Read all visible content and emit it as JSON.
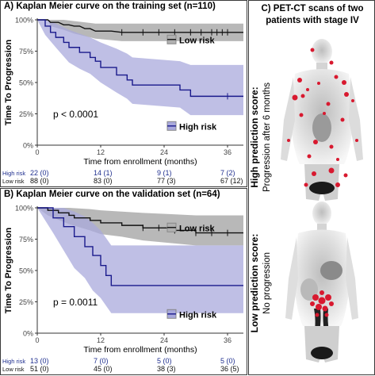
{
  "panel_a": {
    "title": "A) Kaplan Meier curve on the training set (n=110)"
  },
  "panel_b": {
    "title": "B) Kaplan Meier curve on the validation set (n=64)"
  },
  "panel_c": {
    "title_line1": "C) PET-CT scans of two",
    "title_line2": "patients with stage IV",
    "top_label_bold": "High prediction score:",
    "top_label_sub": "Progression after 6 months",
    "bottom_label_bold": "Low prediction score:",
    "bottom_label_sub": "No progression"
  },
  "colors": {
    "low_risk": "#111111",
    "high_risk": "#1a1a8c",
    "low_band": "#b0b0b0",
    "high_band": "#a9a9dc",
    "at_risk_blue": "#1f2f8f"
  },
  "chart_data": [
    {
      "type": "line",
      "title": "A) Kaplan Meier curve on the training set (n=110)",
      "xlabel": "Time from enrollment (months)",
      "ylabel": "Time To Progression",
      "xlim": [
        0,
        39
      ],
      "ylim": [
        0,
        1
      ],
      "xticks": [
        0,
        12,
        24,
        36
      ],
      "yticks": [
        "0%",
        "25%",
        "50%",
        "75%",
        "100%"
      ],
      "grid": false,
      "annotation": "p < 0.0001",
      "legend": {
        "low": "Low risk",
        "high": "High risk"
      },
      "series": [
        {
          "name": "Low risk",
          "points": [
            [
              0,
              1.0
            ],
            [
              2,
              1.0
            ],
            [
              2.5,
              0.98
            ],
            [
              4,
              0.98
            ],
            [
              5,
              0.96
            ],
            [
              6,
              0.96
            ],
            [
              7,
              0.95
            ],
            [
              8,
              0.95
            ],
            [
              9,
              0.93
            ],
            [
              10,
              0.93
            ],
            [
              11,
              0.91
            ],
            [
              14,
              0.91
            ],
            [
              16,
              0.9
            ],
            [
              39,
              0.9
            ]
          ],
          "band": [
            [
              0,
              1.0,
              1.0
            ],
            [
              2,
              1.0,
              1.0
            ],
            [
              2.5,
              1.0,
              0.95
            ],
            [
              5,
              1.0,
              0.92
            ],
            [
              7,
              0.99,
              0.89
            ],
            [
              9,
              0.98,
              0.87
            ],
            [
              11,
              0.97,
              0.85
            ],
            [
              16,
              0.97,
              0.83
            ],
            [
              39,
              0.97,
              0.83
            ]
          ],
          "censor": [
            16,
            20,
            23,
            26,
            29,
            31,
            33,
            34,
            35,
            36
          ]
        },
        {
          "name": "High risk",
          "points": [
            [
              0,
              1.0
            ],
            [
              1.5,
              1.0
            ],
            [
              1.5,
              0.95
            ],
            [
              2.5,
              0.95
            ],
            [
              2.5,
              0.9
            ],
            [
              3.5,
              0.9
            ],
            [
              3.5,
              0.86
            ],
            [
              5,
              0.86
            ],
            [
              5,
              0.82
            ],
            [
              6,
              0.82
            ],
            [
              6,
              0.78
            ],
            [
              8,
              0.78
            ],
            [
              8,
              0.74
            ],
            [
              10,
              0.74
            ],
            [
              10,
              0.7
            ],
            [
              11,
              0.7
            ],
            [
              11,
              0.67
            ],
            [
              12,
              0.67
            ],
            [
              12,
              0.62
            ],
            [
              15,
              0.62
            ],
            [
              15,
              0.56
            ],
            [
              17,
              0.56
            ],
            [
              17,
              0.52
            ],
            [
              18,
              0.52
            ],
            [
              18,
              0.48
            ],
            [
              27,
              0.48
            ],
            [
              27,
              0.44
            ],
            [
              29,
              0.44
            ],
            [
              29,
              0.39
            ],
            [
              39,
              0.39
            ]
          ],
          "band": [
            [
              0,
              1.0,
              1.0
            ],
            [
              1.5,
              1.0,
              0.88
            ],
            [
              3.5,
              0.97,
              0.78
            ],
            [
              6,
              0.92,
              0.66
            ],
            [
              8,
              0.89,
              0.61
            ],
            [
              10,
              0.86,
              0.57
            ],
            [
              12,
              0.82,
              0.5
            ],
            [
              15,
              0.77,
              0.42
            ],
            [
              17,
              0.73,
              0.37
            ],
            [
              18,
              0.7,
              0.33
            ],
            [
              27,
              0.67,
              0.3
            ],
            [
              29,
              0.64,
              0.24
            ],
            [
              39,
              0.64,
              0.24
            ]
          ],
          "censor": [
            36
          ]
        }
      ],
      "at_risk": {
        "times": [
          0,
          12,
          24,
          36
        ],
        "rows": [
          {
            "label": "High risk",
            "values": [
              "22 (0)",
              "14 (1)",
              "9 (1)",
              "7 (2)"
            ]
          },
          {
            "label": "Low risk",
            "values": [
              "88 (0)",
              "83 (0)",
              "77 (3)",
              "67 (12)"
            ]
          }
        ]
      }
    },
    {
      "type": "line",
      "title": "B) Kaplan Meier curve on the validation set (n=64)",
      "xlabel": "Time from enrollment (months)",
      "ylabel": "Time To Progression",
      "xlim": [
        0,
        39
      ],
      "ylim": [
        0,
        1
      ],
      "xticks": [
        0,
        12,
        24,
        36
      ],
      "yticks": [
        "0%",
        "25%",
        "50%",
        "75%",
        "100%"
      ],
      "grid": false,
      "annotation": "p = 0.0011",
      "legend": {
        "low": "Low risk",
        "high": "High risk"
      },
      "series": [
        {
          "name": "Low risk",
          "points": [
            [
              0,
              1.0
            ],
            [
              2,
              1.0
            ],
            [
              2,
              0.98
            ],
            [
              4,
              0.98
            ],
            [
              4,
              0.96
            ],
            [
              6,
              0.96
            ],
            [
              6,
              0.94
            ],
            [
              7,
              0.94
            ],
            [
              7,
              0.92
            ],
            [
              10,
              0.92
            ],
            [
              10,
              0.9
            ],
            [
              12,
              0.9
            ],
            [
              12,
              0.88
            ],
            [
              16,
              0.88
            ],
            [
              16,
              0.86
            ],
            [
              20,
              0.86
            ],
            [
              20,
              0.84
            ],
            [
              25,
              0.84
            ],
            [
              25,
              0.82
            ],
            [
              30,
              0.82
            ],
            [
              30,
              0.8
            ],
            [
              39,
              0.8
            ]
          ],
          "band": [
            [
              0,
              1.0,
              1.0
            ],
            [
              2,
              1.0,
              0.94
            ],
            [
              6,
              1.0,
              0.87
            ],
            [
              10,
              0.99,
              0.82
            ],
            [
              12,
              0.98,
              0.79
            ],
            [
              16,
              0.97,
              0.77
            ],
            [
              20,
              0.96,
              0.74
            ],
            [
              25,
              0.95,
              0.72
            ],
            [
              30,
              0.94,
              0.7
            ],
            [
              39,
              0.94,
              0.7
            ]
          ],
          "censor": [
            20,
            23,
            26,
            30,
            33,
            36
          ]
        },
        {
          "name": "High risk",
          "points": [
            [
              0,
              1.0
            ],
            [
              3,
              1.0
            ],
            [
              3,
              0.92
            ],
            [
              5,
              0.92
            ],
            [
              5,
              0.85
            ],
            [
              7,
              0.85
            ],
            [
              7,
              0.77
            ],
            [
              9,
              0.77
            ],
            [
              9,
              0.69
            ],
            [
              10.5,
              0.69
            ],
            [
              10.5,
              0.62
            ],
            [
              12,
              0.62
            ],
            [
              12,
              0.54
            ],
            [
              13,
              0.54
            ],
            [
              13,
              0.46
            ],
            [
              14,
              0.46
            ],
            [
              14,
              0.38
            ],
            [
              39,
              0.38
            ]
          ],
          "band": [
            [
              0,
              1.0,
              1.0
            ],
            [
              3,
              1.0,
              0.8
            ],
            [
              5,
              1.0,
              0.66
            ],
            [
              7,
              0.97,
              0.52
            ],
            [
              9,
              0.93,
              0.44
            ],
            [
              10.5,
              0.88,
              0.34
            ],
            [
              12,
              0.82,
              0.28
            ],
            [
              13,
              0.76,
              0.22
            ],
            [
              14,
              0.7,
              0.16
            ],
            [
              39,
              0.7,
              0.16
            ]
          ],
          "censor": []
        }
      ],
      "at_risk": {
        "times": [
          0,
          12,
          24,
          36
        ],
        "rows": [
          {
            "label": "High risk",
            "values": [
              "13 (0)",
              "7 (0)",
              "5 (0)",
              "5 (0)"
            ]
          },
          {
            "label": "Low risk",
            "values": [
              "51 (0)",
              "45 (0)",
              "38 (3)",
              "36 (5)"
            ]
          }
        ]
      }
    }
  ]
}
